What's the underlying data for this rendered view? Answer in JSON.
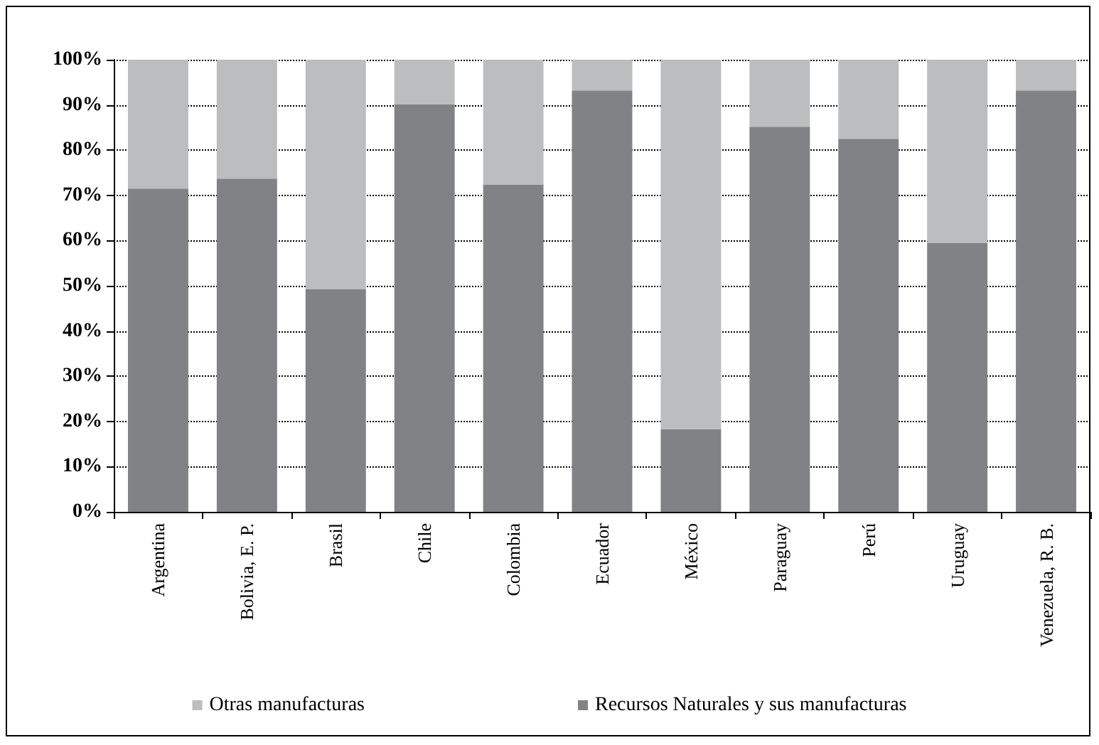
{
  "chart_data": {
    "type": "bar",
    "stacked": true,
    "categories": [
      "Argentina",
      "Bolivia, E. P.",
      "Brasil",
      "Chile",
      "Colombia",
      "Ecuador",
      "México",
      "Paraguay",
      "Perú",
      "Uruguay",
      "Venezuela, R. B."
    ],
    "series": [
      {
        "name": "Recursos Naturales y sus manufacturas",
        "color": "#808285",
        "values": [
          71.5,
          73.7,
          49.2,
          90.1,
          72.4,
          93.2,
          18.3,
          85.2,
          82.5,
          59.5,
          93.2
        ]
      },
      {
        "name": "Otras manufacturas",
        "color": "#bcbdbf",
        "values": [
          28.5,
          26.3,
          50.8,
          9.9,
          27.6,
          6.8,
          81.7,
          14.8,
          17.5,
          40.5,
          6.8
        ]
      }
    ],
    "ylim": [
      0,
      100
    ],
    "yticks": [
      {
        "value": 0,
        "label": "0%"
      },
      {
        "value": 10,
        "label": "10%"
      },
      {
        "value": 20,
        "label": "20%"
      },
      {
        "value": 30,
        "label": "30%"
      },
      {
        "value": 40,
        "label": "40%"
      },
      {
        "value": 50,
        "label": "50%"
      },
      {
        "value": 60,
        "label": "60%"
      },
      {
        "value": 70,
        "label": "70%"
      },
      {
        "value": 80,
        "label": "80%"
      },
      {
        "value": 90,
        "label": "90%"
      },
      {
        "value": 100,
        "label": "100%"
      }
    ],
    "grid": "y",
    "legend": "bottom"
  }
}
